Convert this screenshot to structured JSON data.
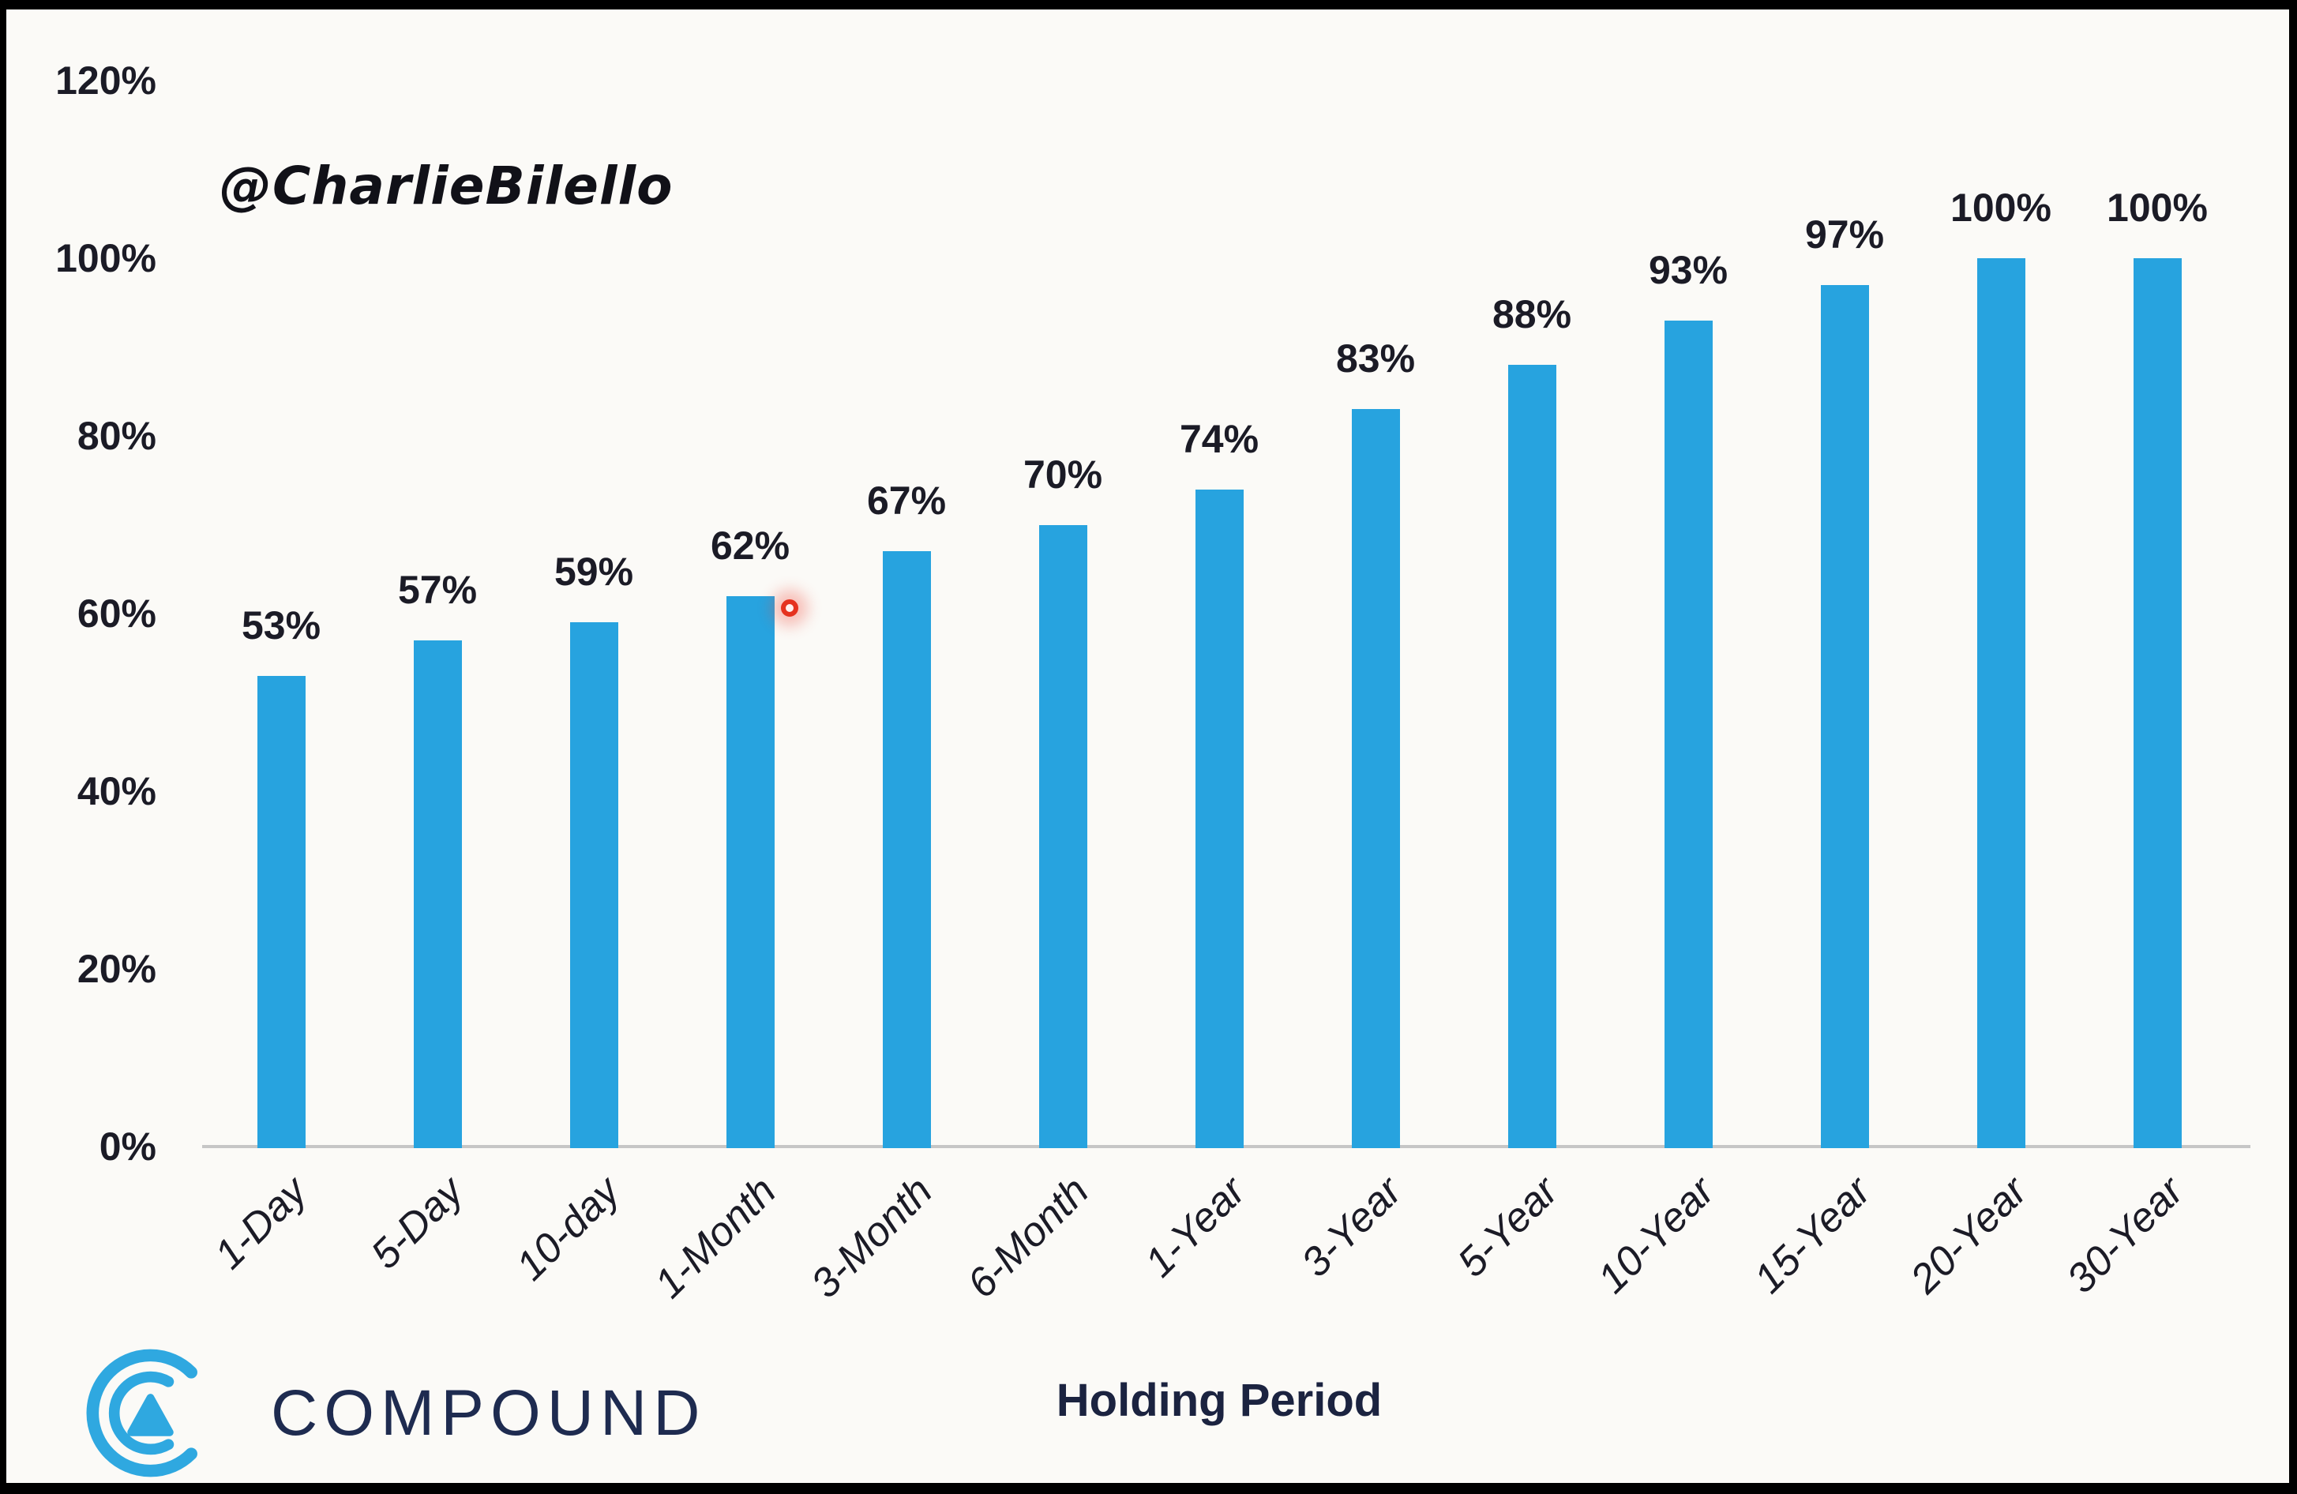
{
  "chart_data": {
    "type": "bar",
    "title": "",
    "annotation": "@CharlieBilello",
    "categories": [
      "1-Day",
      "5-Day",
      "10-day",
      "1-Month",
      "3-Month",
      "6-Month",
      "1-Year",
      "3-Year",
      "5-Year",
      "10-Year",
      "15-Year",
      "20-Year",
      "30-Year"
    ],
    "values": [
      53,
      57,
      59,
      62,
      67,
      70,
      74,
      83,
      88,
      93,
      97,
      100,
      100
    ],
    "value_labels": [
      "53%",
      "57%",
      "59%",
      "62%",
      "67%",
      "70%",
      "74%",
      "83%",
      "88%",
      "93%",
      "97%",
      "100%",
      "100%"
    ],
    "xlabel": "Holding Period",
    "ylabel": "",
    "ylim": [
      0,
      120
    ],
    "ytick_step": 20,
    "ytick_labels": [
      "0%",
      "20%",
      "40%",
      "60%",
      "80%",
      "100%",
      "120%"
    ],
    "grid": false,
    "legend": null,
    "bar_color": "#27A3DF"
  },
  "branding": {
    "logo_text": "COMPOUND",
    "logo_icon": "concentric-arcs-with-triangle",
    "logo_blue": "#2FA8E0",
    "logo_navy": "#1E2B50"
  },
  "cursor": {
    "style": "red-ring-pointer-dot"
  },
  "colors": {
    "background": "#FBFAF7",
    "frame": "#000000",
    "bar": "#27A3DF",
    "axis_line": "#C6C6C6",
    "text": "#1B1B26",
    "cursor_red": "#E5321F"
  }
}
